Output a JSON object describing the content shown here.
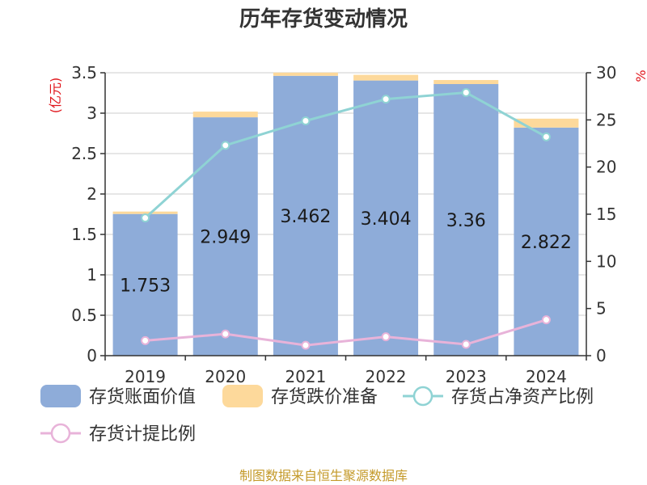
{
  "chart_data": {
    "type": "bar",
    "title": "历年存货变动情况",
    "categories": [
      "2019",
      "2020",
      "2021",
      "2022",
      "2023",
      "2024"
    ],
    "series": [
      {
        "name": "存货账面价值",
        "kind": "bar-stack",
        "axis": "left",
        "color": "#8eacd9",
        "values": [
          1.753,
          2.949,
          3.462,
          3.404,
          3.36,
          2.822
        ],
        "labels": [
          "1.753",
          "2.949",
          "3.462",
          "3.404",
          "3.36",
          "2.822"
        ]
      },
      {
        "name": "存货跌价准备",
        "kind": "bar-stack",
        "axis": "left",
        "color": "#fdd99b",
        "values": [
          0.03,
          0.07,
          0.04,
          0.07,
          0.05,
          0.11
        ]
      },
      {
        "name": "存货占净资产比例",
        "kind": "line",
        "axis": "right",
        "color": "#8fd3d4",
        "values": [
          14.6,
          22.3,
          24.9,
          27.2,
          27.9,
          23.2
        ]
      },
      {
        "name": "存货计提比例",
        "kind": "line",
        "axis": "right",
        "color": "#e8b3d9",
        "values": [
          1.6,
          2.3,
          1.1,
          2.0,
          1.2,
          3.8
        ]
      }
    ],
    "y_left": {
      "unit": "(亿元)",
      "ylim": [
        0,
        3.5
      ],
      "ticks": [
        0,
        0.5,
        1,
        1.5,
        2,
        2.5,
        3,
        3.5
      ],
      "tick_labels": [
        "0",
        "0.5",
        "1",
        "1.5",
        "2",
        "2.5",
        "3",
        "3.5"
      ]
    },
    "y_right": {
      "unit": "%",
      "ylim": [
        0,
        30
      ],
      "ticks": [
        0,
        5,
        10,
        15,
        20,
        25,
        30
      ],
      "tick_labels": [
        "0",
        "5",
        "10",
        "15",
        "20",
        "25",
        "30"
      ]
    },
    "grid": true,
    "legend_position": "bottom"
  },
  "source_text": "制图数据来自恒生聚源数据库"
}
